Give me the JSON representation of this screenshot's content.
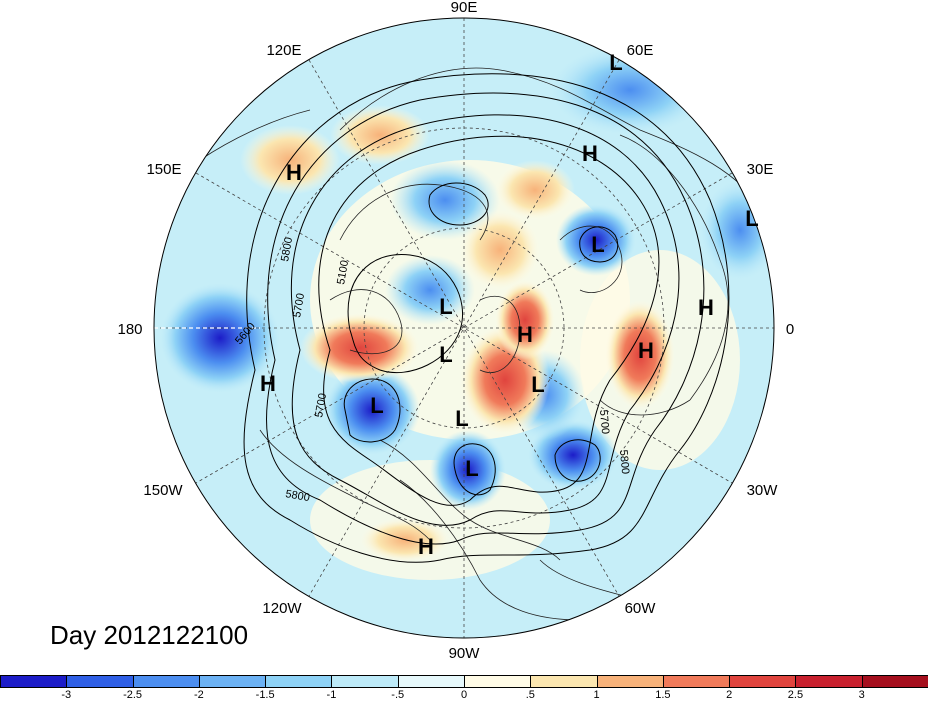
{
  "title": "Day 2012122100",
  "map": {
    "projection": "north-polar-stereographic",
    "longitude_labels": [
      "90E",
      "60E",
      "30E",
      "0",
      "30W",
      "60W",
      "90W",
      "120W",
      "150W",
      "180",
      "150E",
      "120E"
    ],
    "pressure_centers": [
      {
        "type": "L",
        "region": "eastern Siberia"
      },
      {
        "type": "L",
        "region": "Kara Sea"
      },
      {
        "type": "L",
        "region": "western Russia"
      },
      {
        "type": "L",
        "region": "Arctic Ocean"
      },
      {
        "type": "L",
        "region": "Canadian Arctic"
      },
      {
        "type": "L",
        "region": "Baffin Bay"
      },
      {
        "type": "L",
        "region": "Alaska / Gulf of Alaska"
      },
      {
        "type": "L",
        "region": "Hudson Bay"
      },
      {
        "type": "L",
        "region": "Great Lakes"
      },
      {
        "type": "L",
        "region": "western Europe"
      },
      {
        "type": "H",
        "region": "northeast Asia"
      },
      {
        "type": "H",
        "region": "central Asia"
      },
      {
        "type": "H",
        "region": "Barents Sea"
      },
      {
        "type": "H",
        "region": "North Africa"
      },
      {
        "type": "H",
        "region": "Azores"
      },
      {
        "type": "H",
        "region": "North Pacific"
      },
      {
        "type": "H",
        "region": "Gulf of Mexico"
      }
    ],
    "contour_labels": [
      "5100",
      "5600",
      "5700",
      "5800",
      "5700",
      "5700",
      "5800",
      "5800"
    ]
  },
  "colorbar": {
    "tick_labels": [
      "-3",
      "-2.5",
      "-2",
      "-1.5",
      "-1",
      "-.5",
      "0",
      ".5",
      "1",
      "1.5",
      "2",
      "2.5",
      "3"
    ],
    "colors": [
      "#1c1cc8",
      "#2f5fe6",
      "#4c8ef0",
      "#6cb2f4",
      "#8ed2f6",
      "#bdeaf8",
      "#e6f8fb",
      "#fffbe6",
      "#fbe6b0",
      "#f7b27a",
      "#f07a5a",
      "#e0443e",
      "#c8202e",
      "#a50f1e"
    ]
  }
}
